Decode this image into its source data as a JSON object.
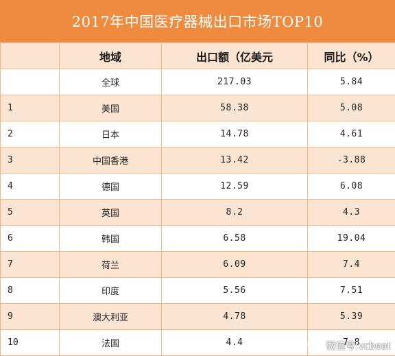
{
  "title": "2017年中国医疗器械出口市场TOP10",
  "headers": {
    "rank": "",
    "region": "地域",
    "export": "出口额（亿美元",
    "yoy": "同比（%）"
  },
  "rows": [
    {
      "rank": "",
      "region": "全球",
      "export": "217.03",
      "yoy": "5.84"
    },
    {
      "rank": "1",
      "region": "美国",
      "export": "58.38",
      "yoy": "5.08"
    },
    {
      "rank": "2",
      "region": "日本",
      "export": "14.78",
      "yoy": "4.61"
    },
    {
      "rank": "3",
      "region": "中国香港",
      "export": "13.42",
      "yoy": "-3.88"
    },
    {
      "rank": "4",
      "region": "德国",
      "export": "12.59",
      "yoy": "6.08"
    },
    {
      "rank": "5",
      "region": "英国",
      "export": "8.2",
      "yoy": "4.3"
    },
    {
      "rank": "6",
      "region": "韩国",
      "export": "6.58",
      "yoy": "19.04"
    },
    {
      "rank": "7",
      "region": "荷兰",
      "export": "6.09",
      "yoy": "7.4"
    },
    {
      "rank": "8",
      "region": "印度",
      "export": "5.56",
      "yoy": "7.51"
    },
    {
      "rank": "9",
      "region": "澳大利亚",
      "export": "4.78",
      "yoy": "5.39"
    },
    {
      "rank": "10",
      "region": "法国",
      "export": "4.4",
      "yoy": "7.8"
    }
  ],
  "watermark": {
    "text": "微信号:vcbeat",
    "icon": "wechat-icon"
  },
  "colors": {
    "header_bg": "#ef8b3f",
    "stripe": "#fbe4d2",
    "border": "#f1b98a"
  }
}
